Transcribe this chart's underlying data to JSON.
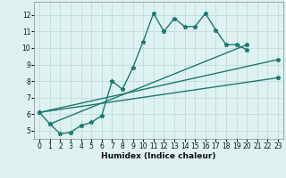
{
  "xlabel": "Humidex (Indice chaleur)",
  "bg_color": "#dff2f2",
  "grid_color": "#c8dede",
  "line_color": "#1a7a6e",
  "xlim": [
    -0.5,
    23.5
  ],
  "ylim": [
    4.5,
    12.8
  ],
  "xticks": [
    0,
    1,
    2,
    3,
    4,
    5,
    6,
    7,
    8,
    9,
    10,
    11,
    12,
    13,
    14,
    15,
    16,
    17,
    18,
    19,
    20,
    21,
    22,
    23
  ],
  "yticks": [
    5,
    6,
    7,
    8,
    9,
    10,
    11,
    12
  ],
  "series1_x": [
    0,
    1,
    2,
    3,
    4,
    5,
    6,
    7,
    8,
    9,
    10,
    11,
    12,
    13,
    14,
    15,
    16,
    17,
    18,
    19,
    20
  ],
  "series1_y": [
    6.1,
    5.4,
    4.8,
    4.9,
    5.3,
    5.5,
    5.9,
    8.0,
    7.5,
    8.8,
    10.4,
    12.1,
    11.0,
    11.8,
    11.3,
    11.3,
    12.1,
    11.1,
    10.2,
    10.2,
    9.9
  ],
  "line1_x": [
    1,
    20
  ],
  "line1_y": [
    5.4,
    10.2
  ],
  "line2_x": [
    0,
    23
  ],
  "line2_y": [
    6.1,
    9.3
  ],
  "line3_x": [
    0,
    23
  ],
  "line3_y": [
    6.1,
    8.2
  ]
}
